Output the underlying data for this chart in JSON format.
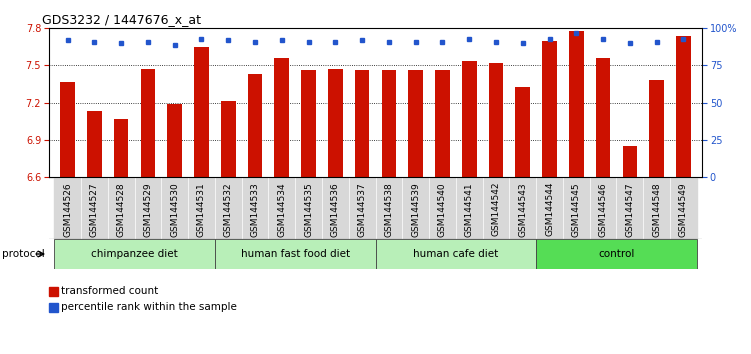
{
  "title": "GDS3232 / 1447676_x_at",
  "samples": [
    "GSM144526",
    "GSM144527",
    "GSM144528",
    "GSM144529",
    "GSM144530",
    "GSM144531",
    "GSM144532",
    "GSM144533",
    "GSM144534",
    "GSM144535",
    "GSM144536",
    "GSM144537",
    "GSM144538",
    "GSM144539",
    "GSM144540",
    "GSM144541",
    "GSM144542",
    "GSM144543",
    "GSM144544",
    "GSM144545",
    "GSM144546",
    "GSM144547",
    "GSM144548",
    "GSM144549"
  ],
  "bar_values": [
    7.37,
    7.13,
    7.07,
    7.47,
    7.19,
    7.65,
    7.21,
    7.43,
    7.56,
    7.46,
    7.47,
    7.46,
    7.46,
    7.46,
    7.46,
    7.54,
    7.52,
    7.33,
    7.7,
    7.78,
    7.56,
    6.85,
    7.38,
    7.74
  ],
  "percentile_values": [
    92,
    91,
    90,
    91,
    89,
    93,
    92,
    91,
    92,
    91,
    91,
    92,
    91,
    91,
    91,
    93,
    91,
    90,
    93,
    97,
    93,
    90,
    91,
    93
  ],
  "groups": [
    {
      "label": "chimpanzee diet",
      "start": 0,
      "end": 6,
      "color": "#b8efb8"
    },
    {
      "label": "human fast food diet",
      "start": 6,
      "end": 12,
      "color": "#b8efb8"
    },
    {
      "label": "human cafe diet",
      "start": 12,
      "end": 18,
      "color": "#b8efb8"
    },
    {
      "label": "control",
      "start": 18,
      "end": 24,
      "color": "#55dd55"
    }
  ],
  "bar_color": "#cc1100",
  "dot_color": "#2255cc",
  "ylim_left": [
    6.6,
    7.8
  ],
  "ylim_right": [
    0,
    100
  ],
  "yticks_left": [
    6.6,
    6.9,
    7.2,
    7.5,
    7.8
  ],
  "yticks_right": [
    0,
    25,
    50,
    75,
    100
  ],
  "protocol_label": "protocol",
  "legend_items": [
    {
      "color": "#cc1100",
      "label": "transformed count"
    },
    {
      "color": "#2255cc",
      "label": "percentile rank within the sample"
    }
  ],
  "xlabel_bg": "#d8d8d8",
  "group_border_color": "#444444",
  "tick_label_fontsize": 6.5,
  "bar_width": 0.55
}
